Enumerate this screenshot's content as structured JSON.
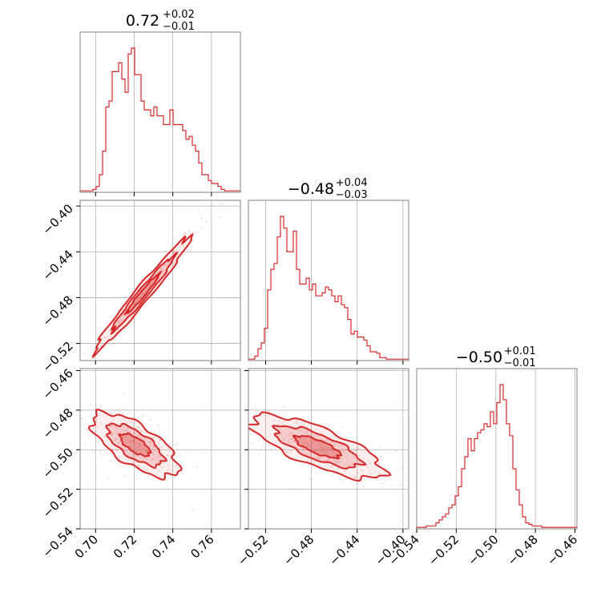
{
  "chart_data": {
    "type": "corner",
    "color": "#d62728",
    "params": [
      {
        "median_label": "0.72",
        "plus": "+0.02",
        "minus": "−0.01",
        "range": [
          0.692,
          0.775
        ],
        "ticks": [
          0.7,
          0.72,
          0.74,
          0.76
        ],
        "tick_labels": [
          "0.70",
          "0.72",
          "0.74",
          "0.76"
        ],
        "median": 0.72,
        "sigma_plus": 0.02,
        "sigma_minus": 0.01
      },
      {
        "median_label": "−0.48",
        "plus": "+0.04",
        "minus": "−0.03",
        "range": [
          -0.535,
          -0.395
        ],
        "ticks": [
          -0.52,
          -0.48,
          -0.44,
          -0.4
        ],
        "tick_labels": [
          "−0.52",
          "−0.48",
          "−0.44",
          "−0.40"
        ],
        "median": -0.48,
        "sigma_plus": 0.04,
        "sigma_minus": 0.03
      },
      {
        "median_label": "−0.50",
        "plus": "+0.01",
        "minus": "−0.01",
        "range": [
          -0.54,
          -0.459
        ],
        "ticks": [
          -0.54,
          -0.52,
          -0.5,
          -0.48,
          -0.46
        ],
        "tick_labels": [
          "−0.54",
          "−0.52",
          "−0.50",
          "−0.48",
          "−0.46"
        ],
        "median": -0.5,
        "sigma_plus": 0.01,
        "sigma_minus": 0.01
      }
    ],
    "histograms": [
      {
        "param": 0,
        "edges_start": 0.692,
        "bin_width": 0.00166,
        "counts": [
          1,
          1,
          1,
          1,
          2,
          4,
          12,
          28,
          58,
          62,
          82,
          82,
          88,
          77,
          68,
          94,
          98,
          80,
          80,
          62,
          56,
          56,
          52,
          58,
          52,
          52,
          46,
          46,
          56,
          46,
          46,
          46,
          42,
          36,
          38,
          32,
          28,
          20,
          12,
          12,
          8,
          6,
          6,
          4,
          2,
          1,
          1,
          1,
          1,
          1
        ]
      },
      {
        "param": 1,
        "edges_start": -0.535,
        "bin_width": 0.0028,
        "counts": [
          1,
          1,
          3,
          8,
          12,
          22,
          48,
          62,
          66,
          84,
          98,
          90,
          74,
          74,
          88,
          62,
          52,
          52,
          56,
          48,
          52,
          44,
          44,
          46,
          50,
          48,
          44,
          40,
          44,
          38,
          36,
          28,
          18,
          20,
          16,
          16,
          14,
          10,
          6,
          6,
          5,
          2,
          2,
          1,
          1,
          1,
          1,
          1,
          1,
          1
        ]
      },
      {
        "param": 2,
        "edges_start": -0.54,
        "bin_width": 0.00162,
        "counts": [
          1,
          1,
          1,
          2,
          2,
          2,
          4,
          6,
          8,
          10,
          14,
          16,
          22,
          28,
          40,
          48,
          60,
          52,
          60,
          64,
          66,
          70,
          68,
          78,
          70,
          84,
          96,
          86,
          70,
          62,
          40,
          26,
          16,
          8,
          4,
          3,
          2,
          2,
          2,
          1,
          1,
          1,
          1,
          1,
          1,
          1,
          1,
          1,
          1,
          1
        ]
      }
    ],
    "joint": [
      {
        "x": 0,
        "y": 1,
        "mean": [
          0.7245,
          -0.4765
        ],
        "cov": [
          [
            0.00016,
            0.000318
          ],
          [
            0.000318,
            0.00066
          ]
        ],
        "levels": [
          0.2,
          0.55,
          0.85
        ]
      },
      {
        "x": 0,
        "y": 2,
        "mean": [
          0.7205,
          -0.4975
        ],
        "cov": [
          [
            0.000132,
            -6.62e-05
          ],
          [
            -6.62e-05,
            6.94e-05
          ]
        ],
        "levels": [
          0.2,
          0.55,
          0.85
        ]
      },
      {
        "x": 1,
        "y": 2,
        "mean": [
          -0.4745,
          -0.4985
        ],
        "cov": [
          [
            0.00088,
            -0.000186
          ],
          [
            -0.000186,
            6.83e-05
          ]
        ],
        "levels": [
          0.2,
          0.55,
          0.85
        ]
      }
    ]
  }
}
